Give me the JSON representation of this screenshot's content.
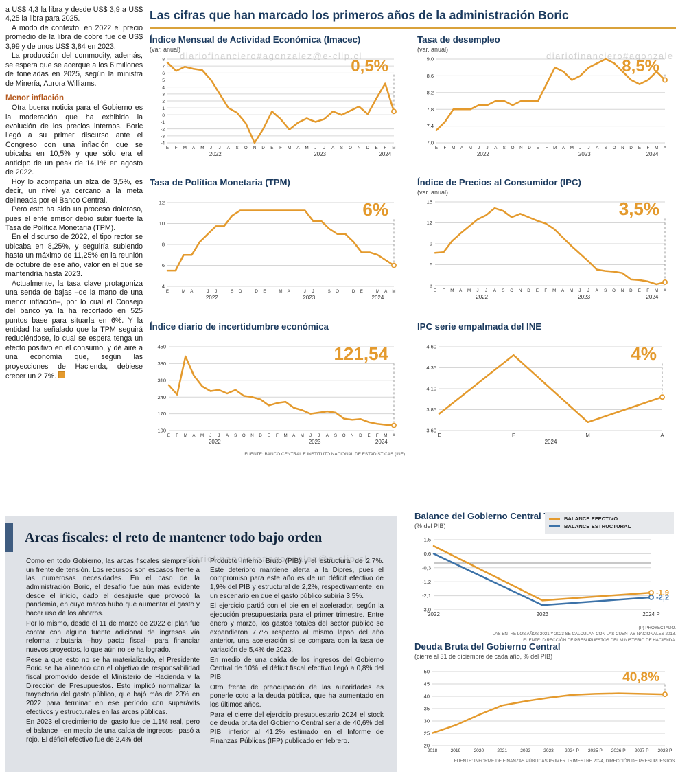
{
  "watermark": "diariofinanciero#agonzalez@e-clip.cl",
  "colors": {
    "accent": "#E49A2D",
    "navy": "#1B3A5E",
    "blue": "#3C72A8",
    "box_bg": "#DFE2E7",
    "subhead": "#B4591F",
    "rule": "#D9A23B"
  },
  "section": {
    "title": "Las cifras que han marcado los primeros años de la administración Boric"
  },
  "left_column": {
    "paragraphs": [
      "a US$ 4,3 la libra y desde US$ 3,9 a US$ 4,25 la libra para 2025.",
      "A modo de contexto, en 2022 el precio promedio de la libra de cobre fue de US$ 3,99 y de unos US$ 3,84 en 2023.",
      "La producción del commodity, además, se espera que se acerque a los 6 millones de toneladas en 2025, según la ministra de Minería, Aurora Williams."
    ],
    "subhead": "Menor inflación",
    "paragraphs2": [
      "Otra buena noticia para el Gobierno es la moderación que ha exhibido la evolución de los precios internos. Boric llegó a su primer discurso ante el Congreso con una inflación que se ubicaba en 10,5% y que sólo era el anticipo de un peak de 14,1% en agosto de 2022.",
      "Hoy lo acompaña un alza de 3,5%, es decir, un nivel ya cercano a la meta delineada por el Banco Central.",
      "Pero esto ha sido un proceso doloroso, pues el ente emisor debió subir fuerte la Tasa de Política Monetaria (TPM).",
      "En el discurso de 2022, el tipo rector se ubicaba en 8,25%, y seguiría subiendo hasta un máximo de 11,25% en la reunión de octubre de ese año, valor en el que se mantendría hasta 2023.",
      "Actualmente, la tasa clave protagoniza una senda de bajas –de la mano de una menor inflación–, por lo cual el Consejo del banco ya la ha recortado en 525 puntos base para situarla en 6%. Y la entidad ha señalado que la TPM seguirá reduciéndose, lo cual se espera tenga un efecto positivo en el consumo, y dé aire a una economía que, según las proyecciones de Hacienda, debiese crecer un 2,7%."
    ]
  },
  "fiscal": {
    "title": "Arcas fiscales: el reto de mantener todo bajo orden",
    "col1": [
      "Como en todo Gobierno, las arcas fiscales siempre son un frente de tensión. Los recursos son escasos frente a las numerosas necesidades. En el caso de la administración Boric, el desafío fue aún más evidente desde el inicio, dado el desajuste que provocó la pandemia, en cuyo marco hubo que aumentar el gasto y hacer uso de los ahorros.",
      "Por lo mismo, desde el 11 de marzo de 2022 el plan fue contar con alguna fuente adicional de ingresos vía reforma tributaria –hoy pacto fiscal– para financiar nuevos proyectos, lo que aún no se ha logrado.",
      "Pese a que esto no se ha materializado, el Presidente Boric se ha alineado con el objetivo de responsabilidad fiscal promovido desde el Ministerio de Hacienda y la Dirección de Presupuestos. Esto implicó normalizar la trayectoria del gasto público, que bajó más de 23% en 2022 para terminar en ese período con superávits efectivos y estructurales en las arcas públicas.",
      "En 2023 el crecimiento del gasto fue de 1,1% real, pero el balance –en medio de una caída de ingresos– pasó a rojo. El déficit efectivo fue de 2,4% del"
    ],
    "col2": [
      "Producto Interno Bruto (PIB) y el estructural de 2,7%. Este deterioro mantiene alerta a la Dipres, pues el compromiso para este año es de un déficit efectivo de 1,9% del PIB y estructural de 2,2%, respectivamente, en un escenario en que el gasto público subiría 3,5%.",
      "El ejercicio partió con el pie en el acelerador, según la ejecución presupuestaria para el primer trimestre. Entre enero y marzo, los gastos totales del sector público se expandieron 7,7% respecto al mismo lapso del año anterior, una aceleración si se compara con la tasa de variación de 5,4% de 2023.",
      "En medio de una caída de los ingresos del Gobierno Central de 10%, el déficit fiscal efectivo llegó a 0,8% del PIB.",
      "Otro frente de preocupación de las autoridades es ponerle coto a la deuda pública, que ha aumentado en los últimos años.",
      "Para el cierre del ejercicio presupuestario 2024 el stock de deuda bruta del Gobierno Central sería de 40,6% del PIB, inferior al 41,2% estimado en el Informe de Finanzas Públicas (IFP) publicado en febrero."
    ]
  },
  "chart_data": [
    {
      "type": "line",
      "title": "Índice Mensual de Actividad Económica (Imacec)",
      "subtitle": "(var. anual)",
      "ylim": [
        -4,
        8
      ],
      "yticks": [
        8,
        7,
        6,
        5,
        4,
        3,
        2,
        1,
        0,
        -1,
        -2,
        -3,
        -4
      ],
      "ytick_labels": [
        "8",
        "7",
        "6",
        "5",
        "4",
        "3",
        "2",
        "1",
        "0",
        "-1",
        "-2",
        "-3",
        "-4"
      ],
      "ytick_font": 6.8,
      "zeroline": true,
      "x_labels": [
        "E",
        "F",
        "M",
        "A",
        "M",
        "J",
        "J",
        "A",
        "S",
        "O",
        "N",
        "D",
        "E",
        "F",
        "M",
        "A",
        "M",
        "J",
        "J",
        "A",
        "S",
        "O",
        "N",
        "D",
        "E",
        "F",
        "M"
      ],
      "x_years": [
        {
          "label": "2022",
          "from": 0,
          "to": 11
        },
        {
          "label": "2023",
          "from": 12,
          "to": 23
        },
        {
          "label": "2024",
          "from": 24,
          "to": 26
        }
      ],
      "series": [
        {
          "name": "Imacec",
          "color": "#E49A2D",
          "values": [
            7.5,
            6.3,
            6.9,
            6.6,
            6.4,
            5.0,
            3.0,
            1.0,
            0.3,
            -1.2,
            -4.0,
            -2.0,
            0.5,
            -0.6,
            -2.1,
            -1.1,
            -0.5,
            -1.0,
            -0.6,
            0.5,
            0.0,
            0.6,
            1.2,
            0.1,
            2.4,
            4.5,
            0.5
          ]
        }
      ],
      "highlight": {
        "text": "0,5%",
        "size": 24,
        "color": "#E49A2D"
      },
      "margin": {
        "l": 26,
        "r": 16,
        "t": 8,
        "b": 28
      }
    },
    {
      "type": "line",
      "title": "Tasa de desempleo",
      "subtitle": "(var. anual)",
      "ylim": [
        7.0,
        9.0
      ],
      "yticks": [
        9.0,
        8.6,
        8.2,
        7.8,
        7.4,
        7.0
      ],
      "ytick_labels": [
        "9,0",
        "8,6",
        "8,2",
        "7,8",
        "7,4",
        "7,0"
      ],
      "x_labels": [
        "E",
        "F",
        "M",
        "A",
        "M",
        "J",
        "J",
        "A",
        "S",
        "O",
        "N",
        "D",
        "E",
        "F",
        "M",
        "A",
        "M",
        "J",
        "J",
        "A",
        "S",
        "O",
        "N",
        "D",
        "E",
        "F",
        "M",
        "A"
      ],
      "x_years": [
        {
          "label": "2022",
          "from": 0,
          "to": 11
        },
        {
          "label": "2023",
          "from": 12,
          "to": 23
        },
        {
          "label": "2024",
          "from": 24,
          "to": 27
        }
      ],
      "series": [
        {
          "name": "Tasa de desempleo",
          "color": "#E49A2D",
          "values": [
            7.3,
            7.5,
            7.8,
            7.8,
            7.8,
            7.9,
            7.9,
            8.0,
            8.0,
            7.9,
            8.0,
            8.0,
            8.0,
            8.4,
            8.8,
            8.7,
            8.5,
            8.6,
            8.8,
            8.9,
            9.0,
            8.9,
            8.7,
            8.5,
            8.4,
            8.5,
            8.7,
            8.5
          ]
        }
      ],
      "highlight": {
        "text": "8,5%",
        "size": 24,
        "color": "#E49A2D"
      },
      "margin": {
        "l": 28,
        "r": 16,
        "t": 8,
        "b": 28
      }
    },
    {
      "type": "line",
      "title": "Tasa de Política Monetaria (TPM)",
      "subtitle": "",
      "ylim": [
        4,
        12
      ],
      "yticks": [
        12,
        10,
        8,
        6,
        4
      ],
      "ytick_labels": [
        "12",
        "10",
        "8",
        "6",
        "4"
      ],
      "x_labels": [
        "E",
        "",
        "M",
        "A",
        "",
        "J",
        "J",
        "",
        "S",
        "O",
        "",
        "D",
        "E",
        "",
        "M",
        "A",
        "",
        "J",
        "J",
        "",
        "S",
        "O",
        "",
        "D",
        "E",
        "",
        "M",
        "A",
        "M"
      ],
      "x_years": [
        {
          "label": "2022",
          "from": 0,
          "to": 11
        },
        {
          "label": "2023",
          "from": 12,
          "to": 23
        },
        {
          "label": "2024",
          "from": 24,
          "to": 28
        }
      ],
      "series": [
        {
          "name": "TPM",
          "color": "#E49A2D",
          "values": [
            5.5,
            5.5,
            7.0,
            7.0,
            8.25,
            9.0,
            9.75,
            9.75,
            10.75,
            11.25,
            11.25,
            11.25,
            11.25,
            11.25,
            11.25,
            11.25,
            11.25,
            11.25,
            10.25,
            10.25,
            9.5,
            9.0,
            9.0,
            8.25,
            7.25,
            7.25,
            7.0,
            6.5,
            6.0
          ]
        }
      ],
      "highlight": {
        "text": "6%",
        "size": 26,
        "color": "#E49A2D"
      },
      "margin": {
        "l": 26,
        "r": 16,
        "t": 8,
        "b": 28
      }
    },
    {
      "type": "line",
      "title": "Índice de Precios al Consumidor (IPC)",
      "subtitle": "(var. anual)",
      "ylim": [
        3,
        15
      ],
      "yticks": [
        15,
        12,
        9,
        6,
        3
      ],
      "ytick_labels": [
        "15",
        "12",
        "9",
        "6",
        "3"
      ],
      "x_labels": [
        "E",
        "F",
        "M",
        "A",
        "M",
        "J",
        "J",
        "A",
        "S",
        "O",
        "N",
        "D",
        "E",
        "F",
        "M",
        "A",
        "M",
        "J",
        "J",
        "A",
        "S",
        "O",
        "N",
        "D",
        "E",
        "F",
        "M",
        "A"
      ],
      "x_years": [
        {
          "label": "2022",
          "from": 0,
          "to": 11
        },
        {
          "label": "2023",
          "from": 12,
          "to": 23
        },
        {
          "label": "2024",
          "from": 24,
          "to": 27
        }
      ],
      "series": [
        {
          "name": "IPC",
          "color": "#E49A2D",
          "values": [
            7.7,
            7.8,
            9.4,
            10.5,
            11.5,
            12.5,
            13.1,
            14.1,
            13.7,
            12.8,
            13.3,
            12.8,
            12.3,
            11.9,
            11.1,
            9.9,
            8.7,
            7.6,
            6.5,
            5.3,
            5.1,
            5.0,
            4.8,
            3.9,
            3.8,
            3.6,
            3.2,
            3.5
          ]
        }
      ],
      "highlight": {
        "text": "3,5%",
        "size": 26,
        "color": "#E49A2D"
      },
      "margin": {
        "l": 26,
        "r": 16,
        "t": 8,
        "b": 28
      }
    },
    {
      "type": "line",
      "title": "Índice diario de incertidumbre económica",
      "subtitle": "",
      "ylim": [
        100,
        450
      ],
      "yticks": [
        450,
        380,
        310,
        240,
        170,
        100
      ],
      "ytick_labels": [
        "450",
        "380",
        "310",
        "240",
        "170",
        "100"
      ],
      "x_labels": [
        "E",
        "F",
        "M",
        "A",
        "M",
        "J",
        "J",
        "A",
        "S",
        "O",
        "N",
        "D",
        "E",
        "F",
        "M",
        "A",
        "M",
        "J",
        "J",
        "A",
        "S",
        "O",
        "N",
        "D",
        "E",
        "F",
        "M",
        "A"
      ],
      "x_years": [
        {
          "label": "2022",
          "from": 0,
          "to": 11
        },
        {
          "label": "2023",
          "from": 12,
          "to": 23
        },
        {
          "label": "2024",
          "from": 24,
          "to": 27
        }
      ],
      "series": [
        {
          "name": "Incertidumbre económica",
          "color": "#E49A2D",
          "values": [
            290,
            250,
            410,
            330,
            285,
            265,
            270,
            255,
            270,
            245,
            240,
            230,
            205,
            215,
            220,
            195,
            185,
            170,
            175,
            180,
            175,
            150,
            145,
            148,
            135,
            128,
            124,
            121.54
          ]
        }
      ],
      "highlight": {
        "text": "121,54",
        "size": 26,
        "color": "#E49A2D"
      },
      "source": "FUENTE: BANCO CENTRAL E INSTITUTO NACIONAL DE ESTADÍSTICAS (INE)",
      "margin": {
        "l": 28,
        "r": 16,
        "t": 8,
        "b": 28
      }
    },
    {
      "type": "line",
      "title": "IPC serie empalmada del INE",
      "subtitle": "",
      "ylim": [
        3.6,
        4.6
      ],
      "yticks": [
        4.6,
        4.35,
        4.1,
        3.85,
        3.6
      ],
      "ytick_labels": [
        "4,60",
        "4,35",
        "4,10",
        "3,85",
        "3,60"
      ],
      "x_labels": [
        "E",
        "F",
        "M",
        "A"
      ],
      "xtick_font": 7.5,
      "x_years": [
        {
          "label": "2024",
          "from": 0,
          "to": 3
        }
      ],
      "series": [
        {
          "name": "IPC serie empalmada",
          "color": "#E49A2D",
          "values": [
            3.8,
            4.5,
            3.7,
            4.0
          ]
        }
      ],
      "highlight": {
        "text": "4%",
        "size": 26,
        "color": "#E49A2D"
      },
      "margin": {
        "l": 32,
        "r": 20,
        "t": 8,
        "b": 28
      }
    },
    {
      "type": "line",
      "title": "Balance del Gobierno Central Total",
      "subtitle": "(% del PIB)",
      "ylim": [
        -3.0,
        1.5
      ],
      "yticks": [
        1.5,
        0.6,
        -0.3,
        -1.2,
        -2.1,
        -3.0
      ],
      "ytick_labels": [
        "1,5",
        "0,6",
        "-0,3",
        "-1,2",
        "-2,1",
        "-3,0"
      ],
      "zeroline": true,
      "x_labels": [
        "2022",
        "2023",
        "2024 P"
      ],
      "xtick_font": 8,
      "x_years": [],
      "series": [
        {
          "name": "BALANCE EFECTIVO",
          "color": "#E49A2D",
          "values": [
            1.1,
            -2.4,
            -1.9
          ],
          "end_label": "-1,9"
        },
        {
          "name": "BALANCE ESTRUCTURAL",
          "color": "#3C72A8",
          "values": [
            0.6,
            -2.7,
            -2.2
          ],
          "end_label": "-2,2"
        }
      ],
      "notes": [
        "(P) PROYECTADO.",
        "LAS ENTRE LOS AÑOS 2021 Y 2023 SE CALCULAN  CON LAS CUENTAS NACIONALES 2018.",
        "FUENTE: DIRECCIÓN DE PRESUPUESTOS DEL MINISTERIO DE HACIENDA."
      ],
      "margin": {
        "l": 28,
        "r": 36,
        "t": 8,
        "b": 18
      }
    },
    {
      "type": "line",
      "title": "Deuda Bruta del Gobierno Central",
      "subtitle": "(cierre al 31 de diciembre de cada año, % del PIB)",
      "ylim": [
        20,
        50
      ],
      "yticks": [
        50,
        45,
        40,
        35,
        30,
        25,
        20
      ],
      "ytick_labels": [
        "50",
        "45",
        "40",
        "35",
        "30",
        "25",
        "20"
      ],
      "x_labels": [
        "2018",
        "2019",
        "2020",
        "2021",
        "2022",
        "2023",
        "2024 P",
        "2025 P",
        "2026 P",
        "2027 P",
        "2028 P"
      ],
      "xtick_font": 6.6,
      "x_years": [],
      "series": [
        {
          "name": "Deuda bruta",
          "color": "#E49A2D",
          "values": [
            25.1,
            28.3,
            32.5,
            36.3,
            38.0,
            39.4,
            40.6,
            41.0,
            41.2,
            41.0,
            40.8
          ]
        }
      ],
      "highlight": {
        "text": "40,8%",
        "size": 19,
        "color": "#E49A2D"
      },
      "source": "FUENTE: INFORME DE FINANZAS PÚBLICAS PRIMER TRIMESTRE 2024, DIRECCIÓN DE PRESUPUESTOS.",
      "margin": {
        "l": 26,
        "r": 16,
        "t": 8,
        "b": 16
      }
    }
  ]
}
